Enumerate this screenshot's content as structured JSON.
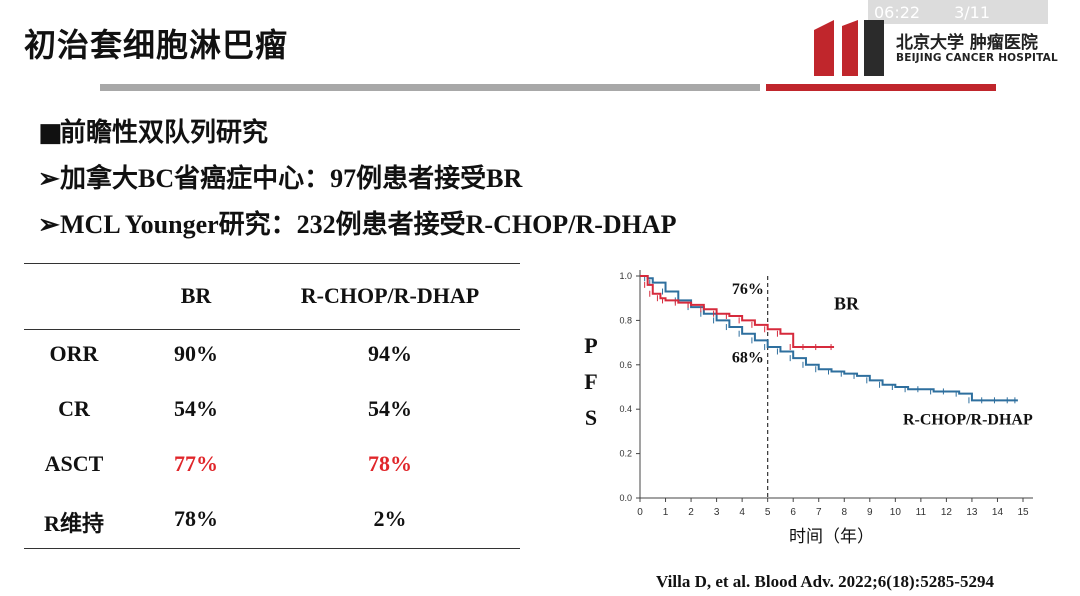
{
  "overlay": {
    "time": "06:22",
    "page": "3/11"
  },
  "slide": {
    "title": "初治套细胞淋巴瘤",
    "logo_cn": "北京大学 肿瘤医院",
    "logo_en": "BEIJING CANCER HOSPITAL",
    "bullets": [
      {
        "marker": "■",
        "text": "前瞻性双队列研究"
      },
      {
        "marker": "➢",
        "text": "加拿大BC省癌症中心：97例患者接受BR"
      },
      {
        "marker": "➢",
        "text": "MCL Younger研究：232例患者接受R-CHOP/R-DHAP"
      }
    ],
    "citation": "Villa D, et al. Blood Adv. 2022;6(18):5285-5294"
  },
  "table": {
    "headers": [
      "",
      "BR",
      "R-CHOP/R-DHAP"
    ],
    "rows": [
      {
        "label": "ORR",
        "br": "90%",
        "rchop": "94%",
        "highlight": false
      },
      {
        "label": "CR",
        "br": "54%",
        "rchop": "54%",
        "highlight": false
      },
      {
        "label": "ASCT",
        "br": "77%",
        "rchop": "78%",
        "highlight": true
      },
      {
        "label": "R维持",
        "br": "78%",
        "rchop": "2%",
        "highlight": false
      }
    ]
  },
  "colors": {
    "accent_red": "#e0262a",
    "br_line": "#d62a3c",
    "rchop_line": "#2e6f9e",
    "rule_gray": "#a8a8a8",
    "rule_red": "#c0262c"
  },
  "chart_data": {
    "type": "line",
    "ylabel_chars": [
      "P",
      "F",
      "S"
    ],
    "xlabel": "时间（年）",
    "xlim": [
      0,
      15
    ],
    "ylim": [
      0.0,
      1.0
    ],
    "xticks": [
      0,
      1,
      2,
      3,
      4,
      5,
      6,
      7,
      8,
      9,
      10,
      11,
      12,
      13,
      14,
      15
    ],
    "yticks": [
      "0.0",
      "0.2",
      "0.4",
      "0.6",
      "0.8",
      "1.0"
    ],
    "reference_x": 5,
    "annotations": [
      {
        "text": "76%",
        "x": 3.6,
        "y": 0.92
      },
      {
        "text": "68%",
        "x": 3.6,
        "y": 0.61
      },
      {
        "text": "BR",
        "x": 7.6,
        "y": 0.85
      },
      {
        "text": "R-CHOP/R-DHAP",
        "x": 10.3,
        "y": 0.33
      }
    ],
    "series": [
      {
        "name": "BR",
        "x": [
          0,
          0.3,
          0.5,
          0.8,
          1.0,
          1.5,
          2.0,
          2.5,
          3.0,
          3.5,
          4.0,
          4.5,
          5.0,
          5.5,
          6.0,
          6.5,
          7.0,
          7.6
        ],
        "y": [
          1.0,
          0.96,
          0.92,
          0.9,
          0.89,
          0.88,
          0.87,
          0.85,
          0.83,
          0.82,
          0.8,
          0.78,
          0.76,
          0.74,
          0.68,
          0.68,
          0.68,
          0.68
        ]
      },
      {
        "name": "R-CHOP/R-DHAP",
        "x": [
          0,
          0.3,
          0.5,
          1.0,
          1.5,
          2.0,
          2.5,
          3.0,
          3.5,
          4.0,
          4.5,
          5.0,
          5.5,
          6.0,
          6.5,
          7.0,
          7.5,
          8.0,
          8.5,
          9.0,
          9.5,
          10.0,
          10.5,
          11.0,
          11.5,
          12.0,
          12.5,
          13.0,
          13.5,
          14.0,
          14.5,
          14.8
        ],
        "y": [
          1.0,
          0.99,
          0.97,
          0.93,
          0.89,
          0.86,
          0.83,
          0.8,
          0.77,
          0.74,
          0.71,
          0.68,
          0.66,
          0.63,
          0.6,
          0.58,
          0.57,
          0.56,
          0.55,
          0.53,
          0.51,
          0.5,
          0.49,
          0.49,
          0.48,
          0.48,
          0.47,
          0.44,
          0.44,
          0.44,
          0.44,
          0.44
        ]
      }
    ]
  }
}
